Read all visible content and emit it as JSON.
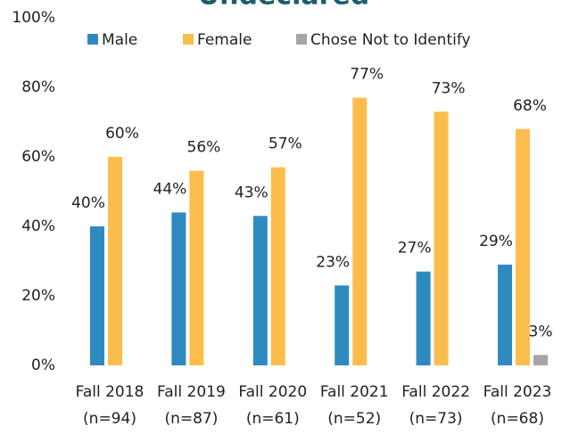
{
  "chart_data": {
    "type": "bar",
    "title": "Undeclared",
    "categories": [
      "Fall 2018\n(n=94)",
      "Fall 2019\n(n=87)",
      "Fall 2020\n(n=61)",
      "Fall 2021\n(n=52)",
      "Fall 2022\n(n=73)",
      "Fall 2023\n(n=68)"
    ],
    "series": [
      {
        "name": "Male",
        "color": "#2e8bc0",
        "values": [
          40,
          44,
          43,
          23,
          27,
          29
        ],
        "value_labels": [
          "40%",
          "44%",
          "43%",
          "23%",
          "27%",
          "29%"
        ]
      },
      {
        "name": "Female",
        "color": "#fbbe4c",
        "values": [
          60,
          56,
          57,
          77,
          73,
          68
        ],
        "value_labels": [
          "60%",
          "56%",
          "57%",
          "77%",
          "73%",
          "68%"
        ]
      },
      {
        "name": "Chose Not to Identify",
        "color": "#a5a5a5",
        "values": [
          null,
          null,
          null,
          null,
          null,
          3
        ],
        "value_labels": [
          null,
          null,
          null,
          null,
          null,
          "3%"
        ]
      }
    ],
    "ylim": [
      0,
      100
    ],
    "yticks": [
      {
        "value": 0,
        "label": "0%"
      },
      {
        "value": 20,
        "label": "20%"
      },
      {
        "value": 40,
        "label": "40%"
      },
      {
        "value": 60,
        "label": "60%"
      },
      {
        "value": 80,
        "label": "80%"
      },
      {
        "value": 100,
        "label": "100%"
      }
    ],
    "grid": false,
    "legend": "top"
  }
}
